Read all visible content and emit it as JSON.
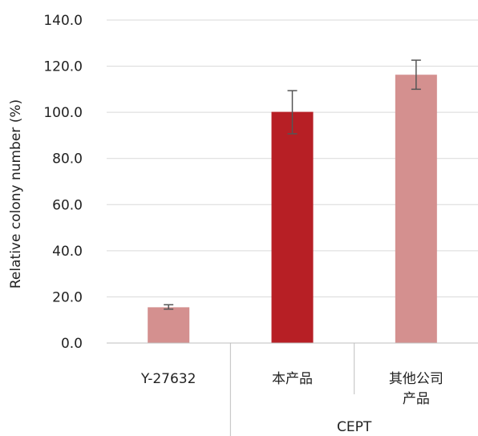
{
  "chart_data": {
    "type": "bar",
    "ylabel": "Relative colony number (%)",
    "ylim": [
      0,
      140
    ],
    "yticks": [
      "0.0",
      "20.0",
      "40.0",
      "60.0",
      "80.0",
      "100.0",
      "120.0",
      "140.0"
    ],
    "grid": true,
    "categories": [
      "Y-27632",
      "本产品",
      "其他公司产品"
    ],
    "category_label_lines": [
      [
        "Y-27632"
      ],
      [
        "本产品"
      ],
      [
        "其他公司",
        "产品"
      ]
    ],
    "group_label": "CEPT",
    "group_members": [
      "本产品",
      "其他公司产品"
    ],
    "values": [
      15.5,
      100.2,
      116.3
    ],
    "error_low": [
      14.7,
      90.7,
      110.0
    ],
    "error_high": [
      16.6,
      109.4,
      122.6
    ],
    "bar_colors": [
      "#d4908f",
      "#b71f25",
      "#d4908f"
    ]
  }
}
